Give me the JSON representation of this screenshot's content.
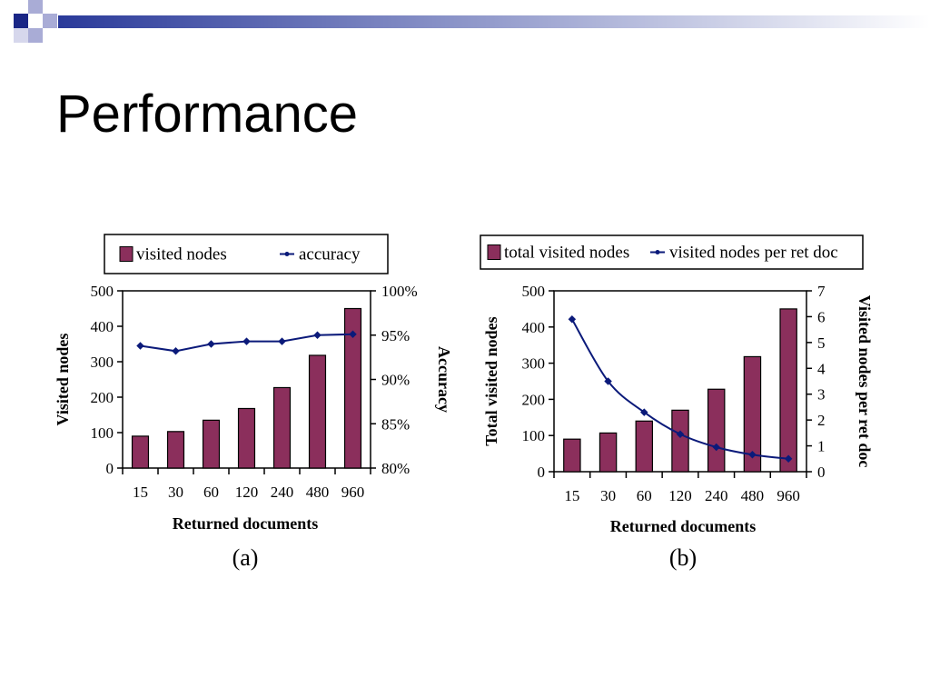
{
  "slide": {
    "title": "Performance"
  },
  "colors": {
    "bar_fill": "#8b2f5c",
    "line": "#0b1a7a",
    "header_blue": "#2a3a9a",
    "header_lavender": "#a9acd6"
  },
  "chart_data": [
    {
      "type": "bar",
      "caption": "(a)",
      "categories": [
        "15",
        "30",
        "60",
        "120",
        "240",
        "480",
        "960"
      ],
      "xlabel": "Returned documents",
      "ylabel": "Visited nodes",
      "y2label": "Accuracy",
      "ylim": [
        0,
        500
      ],
      "yticks": [
        "0",
        "100",
        "200",
        "300",
        "400",
        "500"
      ],
      "y2lim": [
        80,
        100
      ],
      "y2ticks": [
        "80%",
        "85%",
        "90%",
        "95%",
        "100%"
      ],
      "legend": {
        "position": "top",
        "entries": [
          "visited nodes",
          "accuracy"
        ]
      },
      "series": [
        {
          "name": "visited nodes",
          "kind": "bar",
          "axis": "left",
          "values": [
            90,
            103,
            135,
            168,
            227,
            318,
            450
          ]
        },
        {
          "name": "accuracy",
          "kind": "line",
          "axis": "right",
          "values": [
            93.8,
            93.2,
            94.0,
            94.3,
            94.3,
            95.0,
            95.1
          ]
        }
      ]
    },
    {
      "type": "bar",
      "caption": "(b)",
      "categories": [
        "15",
        "30",
        "60",
        "120",
        "240",
        "480",
        "960"
      ],
      "xlabel": "Returned documents",
      "ylabel": "Total visited nodes",
      "y2label": "Visited nodes per ret doc",
      "ylim": [
        0,
        500
      ],
      "yticks": [
        "0",
        "100",
        "200",
        "300",
        "400",
        "500"
      ],
      "y2lim": [
        0,
        7
      ],
      "y2ticks": [
        "0",
        "1",
        "2",
        "3",
        "4",
        "5",
        "6",
        "7"
      ],
      "legend": {
        "position": "top",
        "entries": [
          "total visited nodes",
          "visited nodes per ret doc"
        ]
      },
      "series": [
        {
          "name": "total visited nodes",
          "kind": "bar",
          "axis": "left",
          "values": [
            90,
            107,
            140,
            170,
            228,
            318,
            450
          ]
        },
        {
          "name": "visited nodes per ret doc",
          "kind": "line",
          "axis": "right",
          "values": [
            5.9,
            3.5,
            2.3,
            1.45,
            0.95,
            0.66,
            0.5
          ]
        }
      ]
    }
  ]
}
